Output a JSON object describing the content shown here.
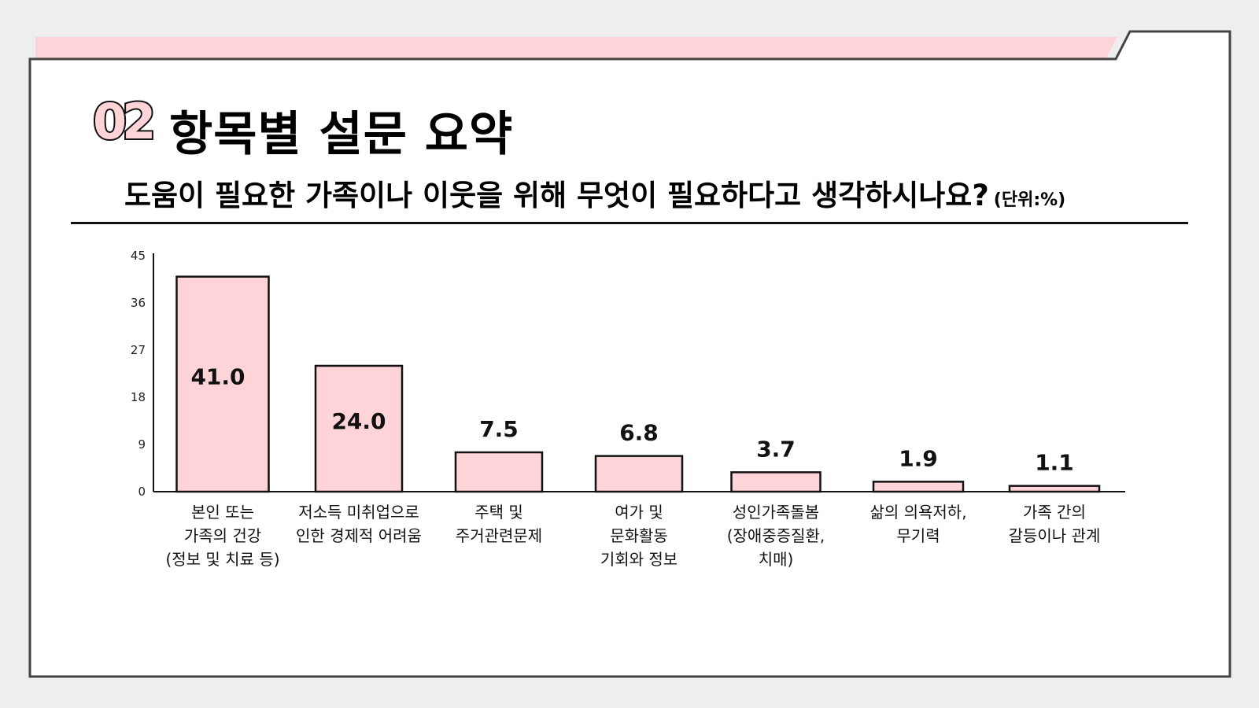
{
  "colors": {
    "accent": "#ffd4d8",
    "bar_fill": "#ffd4d8",
    "stroke": "#111111",
    "background": "#eeeeee",
    "panel": "#ffffff"
  },
  "header": {
    "section_number": "02",
    "section_title": "항목별 설문 요약",
    "question": "도움이 필요한 가족이나 이웃을 위해 무엇이 필요하다고 생각하시나요?",
    "unit": "(단위:%)"
  },
  "chart_data": {
    "type": "bar",
    "title": "",
    "xlabel": "",
    "ylabel": "",
    "ylim": [
      0,
      45
    ],
    "yticks": [
      "0",
      "9",
      "18",
      "27",
      "36",
      "45"
    ],
    "categories": [
      "본인 또는\n가족의 건강\n(정보 및 치료 등)",
      "저소득 미취업으로\n인한 경제적 어려움",
      "주택 및\n주거관련문제",
      "여가 및\n문화활동\n기회와 정보",
      "성인가족돌봄\n(장애중증질환,\n치매)",
      "삶의 의욕저하,\n무기력",
      "가족 간의\n갈등이나 관계"
    ],
    "values": [
      41.0,
      24.0,
      7.5,
      6.8,
      3.7,
      1.9,
      1.1
    ],
    "value_labels": [
      "41.0",
      "24.0",
      "7.5",
      "6.8",
      "3.7",
      "1.9",
      "1.1"
    ],
    "grid": false,
    "legend": "none"
  }
}
